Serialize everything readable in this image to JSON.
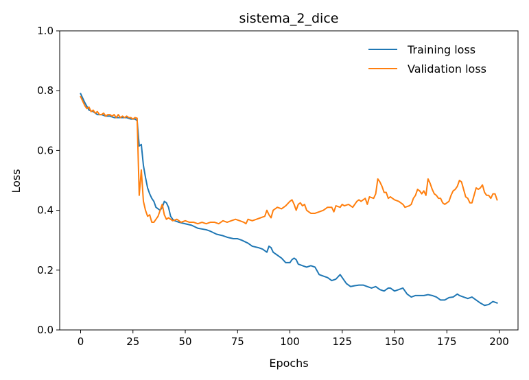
{
  "chart_data": {
    "type": "line",
    "title": "sistema_2_dice",
    "xlabel": "Epochs",
    "ylabel": "Loss",
    "xlim": [
      -10,
      209
    ],
    "ylim": [
      0.0,
      1.0
    ],
    "xticks": [
      0,
      25,
      50,
      75,
      100,
      125,
      150,
      175,
      200
    ],
    "yticks": [
      0.0,
      0.2,
      0.4,
      0.6,
      0.8,
      1.0
    ],
    "xtick_labels": [
      "0",
      "25",
      "50",
      "75",
      "100",
      "125",
      "150",
      "175",
      "200"
    ],
    "ytick_labels": [
      "0.0",
      "0.2",
      "0.4",
      "0.6",
      "0.8",
      "1.0"
    ],
    "grid": false,
    "legend_position": "top-right",
    "series": [
      {
        "name": "Training loss",
        "color": "#1f77b4",
        "points": [
          [
            0,
            0.79
          ],
          [
            2,
            0.76
          ],
          [
            4,
            0.735
          ],
          [
            6,
            0.73
          ],
          [
            8,
            0.72
          ],
          [
            10,
            0.72
          ],
          [
            12,
            0.715
          ],
          [
            14,
            0.715
          ],
          [
            16,
            0.71
          ],
          [
            18,
            0.71
          ],
          [
            20,
            0.71
          ],
          [
            22,
            0.71
          ],
          [
            24,
            0.705
          ],
          [
            26,
            0.705
          ],
          [
            27,
            0.7
          ],
          [
            28,
            0.615
          ],
          [
            29,
            0.62
          ],
          [
            30,
            0.55
          ],
          [
            31,
            0.51
          ],
          [
            32,
            0.475
          ],
          [
            33,
            0.455
          ],
          [
            34,
            0.44
          ],
          [
            35,
            0.43
          ],
          [
            36,
            0.41
          ],
          [
            37,
            0.405
          ],
          [
            38,
            0.4
          ],
          [
            39,
            0.41
          ],
          [
            40,
            0.43
          ],
          [
            41,
            0.425
          ],
          [
            42,
            0.41
          ],
          [
            43,
            0.38
          ],
          [
            44,
            0.37
          ],
          [
            45,
            0.365
          ],
          [
            47,
            0.36
          ],
          [
            50,
            0.355
          ],
          [
            53,
            0.35
          ],
          [
            56,
            0.34
          ],
          [
            60,
            0.335
          ],
          [
            62,
            0.33
          ],
          [
            65,
            0.32
          ],
          [
            68,
            0.315
          ],
          [
            70,
            0.31
          ],
          [
            73,
            0.305
          ],
          [
            75,
            0.305
          ],
          [
            77,
            0.3
          ],
          [
            80,
            0.29
          ],
          [
            82,
            0.28
          ],
          [
            85,
            0.275
          ],
          [
            87,
            0.27
          ],
          [
            89,
            0.26
          ],
          [
            90,
            0.28
          ],
          [
            91,
            0.275
          ],
          [
            92,
            0.26
          ],
          [
            94,
            0.25
          ],
          [
            96,
            0.24
          ],
          [
            98,
            0.225
          ],
          [
            100,
            0.225
          ],
          [
            101,
            0.235
          ],
          [
            102,
            0.24
          ],
          [
            103,
            0.235
          ],
          [
            104,
            0.22
          ],
          [
            106,
            0.215
          ],
          [
            108,
            0.21
          ],
          [
            110,
            0.215
          ],
          [
            112,
            0.21
          ],
          [
            114,
            0.185
          ],
          [
            116,
            0.18
          ],
          [
            118,
            0.175
          ],
          [
            120,
            0.165
          ],
          [
            122,
            0.17
          ],
          [
            124,
            0.185
          ],
          [
            125,
            0.175
          ],
          [
            127,
            0.155
          ],
          [
            129,
            0.145
          ],
          [
            131,
            0.148
          ],
          [
            133,
            0.15
          ],
          [
            135,
            0.15
          ],
          [
            137,
            0.145
          ],
          [
            139,
            0.14
          ],
          [
            141,
            0.145
          ],
          [
            143,
            0.135
          ],
          [
            145,
            0.13
          ],
          [
            147,
            0.14
          ],
          [
            148,
            0.14
          ],
          [
            150,
            0.13
          ],
          [
            152,
            0.135
          ],
          [
            154,
            0.14
          ],
          [
            156,
            0.12
          ],
          [
            158,
            0.11
          ],
          [
            160,
            0.115
          ],
          [
            162,
            0.115
          ],
          [
            164,
            0.115
          ],
          [
            166,
            0.118
          ],
          [
            168,
            0.115
          ],
          [
            170,
            0.11
          ],
          [
            172,
            0.1
          ],
          [
            174,
            0.1
          ],
          [
            176,
            0.108
          ],
          [
            178,
            0.11
          ],
          [
            180,
            0.12
          ],
          [
            181,
            0.115
          ],
          [
            183,
            0.11
          ],
          [
            185,
            0.105
          ],
          [
            187,
            0.11
          ],
          [
            189,
            0.1
          ],
          [
            191,
            0.09
          ],
          [
            193,
            0.082
          ],
          [
            195,
            0.085
          ],
          [
            197,
            0.095
          ],
          [
            199,
            0.09
          ]
        ]
      },
      {
        "name": "Validation loss",
        "color": "#ff7f0e",
        "points": [
          [
            0,
            0.78
          ],
          [
            1,
            0.765
          ],
          [
            2,
            0.75
          ],
          [
            3,
            0.74
          ],
          [
            4,
            0.745
          ],
          [
            5,
            0.73
          ],
          [
            6,
            0.735
          ],
          [
            7,
            0.725
          ],
          [
            8,
            0.73
          ],
          [
            9,
            0.72
          ],
          [
            10,
            0.72
          ],
          [
            11,
            0.725
          ],
          [
            12,
            0.715
          ],
          [
            13,
            0.72
          ],
          [
            14,
            0.72
          ],
          [
            15,
            0.715
          ],
          [
            16,
            0.72
          ],
          [
            17,
            0.71
          ],
          [
            18,
            0.72
          ],
          [
            19,
            0.71
          ],
          [
            20,
            0.715
          ],
          [
            21,
            0.71
          ],
          [
            22,
            0.715
          ],
          [
            23,
            0.71
          ],
          [
            24,
            0.71
          ],
          [
            25,
            0.705
          ],
          [
            26,
            0.71
          ],
          [
            27,
            0.708
          ],
          [
            28,
            0.45
          ],
          [
            29,
            0.535
          ],
          [
            30,
            0.43
          ],
          [
            31,
            0.4
          ],
          [
            32,
            0.38
          ],
          [
            33,
            0.385
          ],
          [
            34,
            0.36
          ],
          [
            35,
            0.36
          ],
          [
            36,
            0.37
          ],
          [
            37,
            0.38
          ],
          [
            38,
            0.4
          ],
          [
            39,
            0.42
          ],
          [
            40,
            0.385
          ],
          [
            41,
            0.37
          ],
          [
            42,
            0.375
          ],
          [
            44,
            0.365
          ],
          [
            46,
            0.37
          ],
          [
            48,
            0.36
          ],
          [
            50,
            0.365
          ],
          [
            52,
            0.36
          ],
          [
            54,
            0.36
          ],
          [
            56,
            0.355
          ],
          [
            58,
            0.36
          ],
          [
            60,
            0.355
          ],
          [
            62,
            0.36
          ],
          [
            64,
            0.36
          ],
          [
            66,
            0.355
          ],
          [
            68,
            0.365
          ],
          [
            70,
            0.36
          ],
          [
            72,
            0.365
          ],
          [
            74,
            0.37
          ],
          [
            76,
            0.365
          ],
          [
            78,
            0.36
          ],
          [
            79,
            0.355
          ],
          [
            80,
            0.37
          ],
          [
            82,
            0.365
          ],
          [
            84,
            0.37
          ],
          [
            86,
            0.375
          ],
          [
            88,
            0.38
          ],
          [
            89,
            0.4
          ],
          [
            90,
            0.385
          ],
          [
            91,
            0.375
          ],
          [
            92,
            0.4
          ],
          [
            94,
            0.41
          ],
          [
            96,
            0.405
          ],
          [
            98,
            0.415
          ],
          [
            100,
            0.43
          ],
          [
            101,
            0.435
          ],
          [
            102,
            0.42
          ],
          [
            103,
            0.4
          ],
          [
            104,
            0.42
          ],
          [
            105,
            0.425
          ],
          [
            106,
            0.415
          ],
          [
            107,
            0.42
          ],
          [
            108,
            0.4
          ],
          [
            109,
            0.395
          ],
          [
            110,
            0.39
          ],
          [
            112,
            0.39
          ],
          [
            114,
            0.395
          ],
          [
            116,
            0.4
          ],
          [
            118,
            0.41
          ],
          [
            120,
            0.41
          ],
          [
            121,
            0.395
          ],
          [
            122,
            0.415
          ],
          [
            124,
            0.41
          ],
          [
            125,
            0.42
          ],
          [
            126,
            0.415
          ],
          [
            128,
            0.42
          ],
          [
            130,
            0.41
          ],
          [
            132,
            0.43
          ],
          [
            133,
            0.435
          ],
          [
            134,
            0.43
          ],
          [
            136,
            0.44
          ],
          [
            137,
            0.42
          ],
          [
            138,
            0.445
          ],
          [
            140,
            0.44
          ],
          [
            141,
            0.455
          ],
          [
            142,
            0.505
          ],
          [
            143,
            0.495
          ],
          [
            144,
            0.48
          ],
          [
            145,
            0.46
          ],
          [
            146,
            0.46
          ],
          [
            147,
            0.44
          ],
          [
            148,
            0.445
          ],
          [
            150,
            0.435
          ],
          [
            152,
            0.43
          ],
          [
            154,
            0.42
          ],
          [
            155,
            0.41
          ],
          [
            157,
            0.415
          ],
          [
            158,
            0.42
          ],
          [
            159,
            0.44
          ],
          [
            160,
            0.45
          ],
          [
            161,
            0.47
          ],
          [
            162,
            0.465
          ],
          [
            163,
            0.455
          ],
          [
            164,
            0.465
          ],
          [
            165,
            0.45
          ],
          [
            166,
            0.505
          ],
          [
            167,
            0.49
          ],
          [
            168,
            0.47
          ],
          [
            169,
            0.455
          ],
          [
            170,
            0.45
          ],
          [
            171,
            0.44
          ],
          [
            172,
            0.44
          ],
          [
            173,
            0.425
          ],
          [
            174,
            0.42
          ],
          [
            176,
            0.43
          ],
          [
            177,
            0.45
          ],
          [
            178,
            0.465
          ],
          [
            179,
            0.47
          ],
          [
            180,
            0.48
          ],
          [
            181,
            0.5
          ],
          [
            182,
            0.495
          ],
          [
            183,
            0.47
          ],
          [
            184,
            0.445
          ],
          [
            185,
            0.44
          ],
          [
            186,
            0.425
          ],
          [
            187,
            0.425
          ],
          [
            188,
            0.45
          ],
          [
            189,
            0.475
          ],
          [
            190,
            0.47
          ],
          [
            191,
            0.475
          ],
          [
            192,
            0.485
          ],
          [
            193,
            0.46
          ],
          [
            194,
            0.45
          ],
          [
            195,
            0.45
          ],
          [
            196,
            0.44
          ],
          [
            197,
            0.455
          ],
          [
            198,
            0.455
          ],
          [
            199,
            0.435
          ]
        ]
      }
    ]
  }
}
